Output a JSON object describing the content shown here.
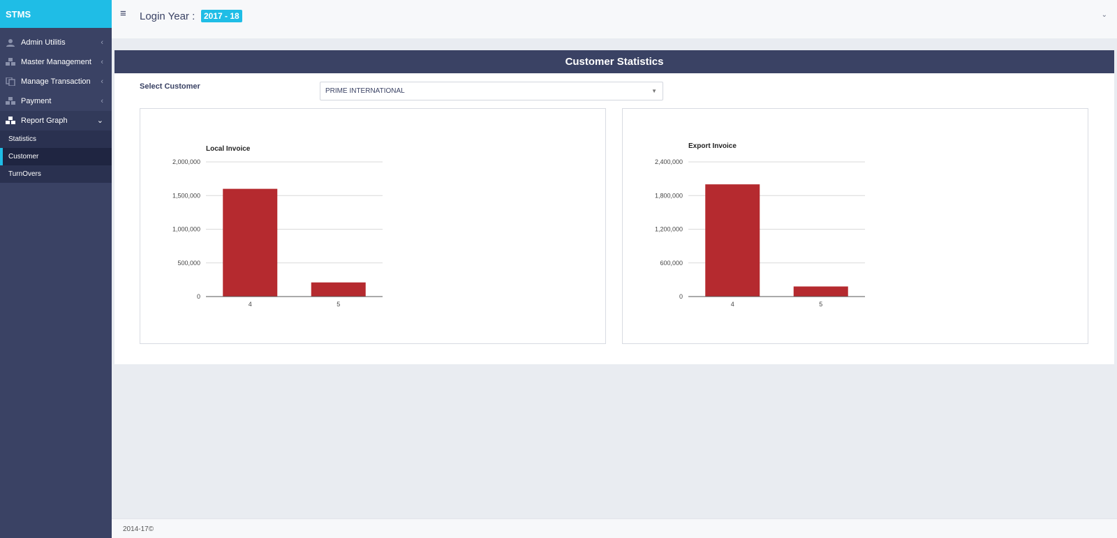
{
  "app": {
    "brand": "STMS"
  },
  "header": {
    "login_label": "Login Year :",
    "year": "2017 - 18",
    "hamburger": "≡",
    "chevron": "⌄"
  },
  "sidebar": {
    "items": [
      {
        "label": "Admin Utilitis",
        "icon": "user-icon",
        "chevron": "‹"
      },
      {
        "label": "Master Management",
        "icon": "cubes-icon",
        "chevron": "‹"
      },
      {
        "label": "Manage Transaction",
        "icon": "copy-icon",
        "chevron": "‹"
      },
      {
        "label": "Payment",
        "icon": "cubes-icon",
        "chevron": "‹"
      },
      {
        "label": "Report Graph",
        "icon": "cubes-icon",
        "chevron": "⌄"
      }
    ],
    "submenu": [
      {
        "label": "Statistics"
      },
      {
        "label": "Customer"
      },
      {
        "label": "TurnOvers"
      }
    ]
  },
  "panel": {
    "title": "Customer Statistics",
    "select_label": "Select Customer",
    "selected_customer": "PRIME INTERNATIONAL",
    "select_arrow": "▼"
  },
  "colors": {
    "accent": "#1fbde6",
    "sidebar": "#3a4264",
    "bar": "#b52a2f"
  },
  "chart_data": [
    {
      "type": "bar",
      "title": "Local Invoice",
      "categories": [
        "4",
        "5"
      ],
      "values": [
        1600000,
        210000
      ],
      "ylim": [
        0,
        2000000
      ],
      "yticks": [
        "0",
        "500,000",
        "1,000,000",
        "1,500,000",
        "2,000,000"
      ],
      "ytick_values": [
        0,
        500000,
        1000000,
        1500000,
        2000000
      ],
      "grid": true
    },
    {
      "type": "bar",
      "title": "Export Invoice",
      "categories": [
        "4",
        "5"
      ],
      "values": [
        2000000,
        180000
      ],
      "ylim": [
        0,
        2400000
      ],
      "yticks": [
        "0",
        "600,000",
        "1,200,000",
        "1,800,000",
        "2,400,000"
      ],
      "ytick_values": [
        0,
        600000,
        1200000,
        1800000,
        2400000
      ],
      "grid": true
    }
  ],
  "footer": {
    "text": "2014-17©"
  }
}
